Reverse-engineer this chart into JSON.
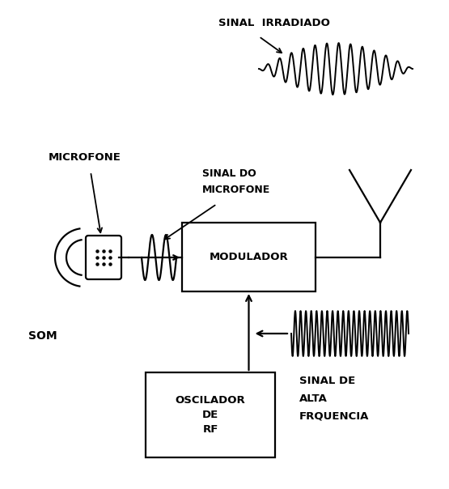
{
  "bg_color": "#ffffff",
  "modulador_label": "MODULADOR",
  "oscilador_label": [
    "OSCILADOR",
    "DE",
    "RF"
  ],
  "microfone_label": "MICROFONE",
  "som_label": "SOM",
  "sinal_do_microfone_label": [
    "SINAL DO",
    "MICROFONE"
  ],
  "sinal_irradiado_label": "SINAL  IRRADIADO",
  "sinal_alta_freq_label": [
    "SINAL DE",
    "ALTA",
    "FRQUENCIA"
  ],
  "text_color": "#000000",
  "line_color": "#000000",
  "line_width": 1.6
}
